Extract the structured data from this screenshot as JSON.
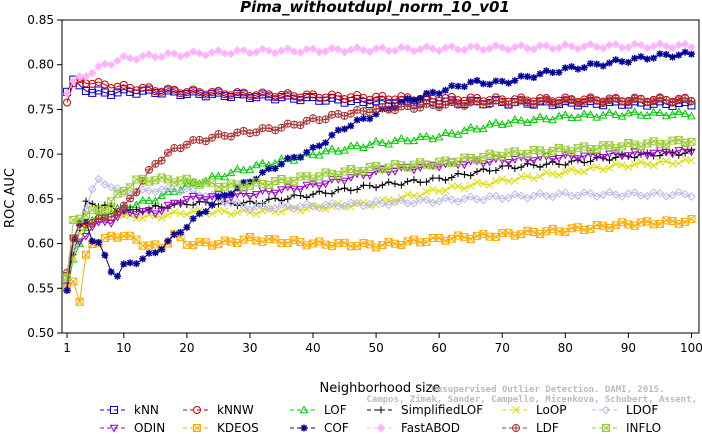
{
  "chart_data": {
    "type": "line",
    "title": "Pima_withoutdupl_norm_10_v01",
    "xlabel": "Neighborhood size",
    "ylabel": "ROC AUC",
    "xlim": [
      1,
      100
    ],
    "ylim": [
      0.5,
      0.85
    ],
    "xticks": [
      1,
      10,
      20,
      30,
      40,
      50,
      60,
      70,
      80,
      90,
      100
    ],
    "yticks": [
      "0.50",
      "0.55",
      "0.60",
      "0.65",
      "0.70",
      "0.75",
      "0.80",
      "0.85"
    ],
    "grid": false,
    "legend_position": "bottom",
    "watermark_lines": [
      "Unsupervised Outlier Detection. DAMI, 2015.",
      "Campos, Zimek, Sander, Campello, Micenkova, Schubert, Assent, Houle"
    ],
    "series": [
      {
        "name": "kNN",
        "color": "#0000cc",
        "marker": "square",
        "points": [
          [
            1,
            0.772
          ],
          [
            2,
            0.782
          ],
          [
            3,
            0.775
          ],
          [
            5,
            0.77
          ],
          [
            7,
            0.768
          ],
          [
            10,
            0.77
          ],
          [
            15,
            0.77
          ],
          [
            20,
            0.768
          ],
          [
            30,
            0.765
          ],
          [
            40,
            0.762
          ],
          [
            50,
            0.758
          ],
          [
            60,
            0.758
          ],
          [
            70,
            0.758
          ],
          [
            80,
            0.757
          ],
          [
            90,
            0.757
          ],
          [
            100,
            0.756
          ]
        ]
      },
      {
        "name": "kNNW",
        "color": "#cc0000",
        "marker": "circle",
        "points": [
          [
            1,
            0.76
          ],
          [
            2,
            0.778
          ],
          [
            3,
            0.782
          ],
          [
            5,
            0.78
          ],
          [
            7,
            0.777
          ],
          [
            10,
            0.775
          ],
          [
            15,
            0.772
          ],
          [
            20,
            0.77
          ],
          [
            30,
            0.767
          ],
          [
            40,
            0.765
          ],
          [
            50,
            0.763
          ],
          [
            60,
            0.762
          ],
          [
            70,
            0.761
          ],
          [
            80,
            0.761
          ],
          [
            90,
            0.761
          ],
          [
            100,
            0.761
          ]
        ]
      },
      {
        "name": "LOF",
        "color": "#00cc00",
        "marker": "triangle-up",
        "points": [
          [
            1,
            0.55
          ],
          [
            2,
            0.58
          ],
          [
            4,
            0.62
          ],
          [
            6,
            0.63
          ],
          [
            8,
            0.635
          ],
          [
            10,
            0.64
          ],
          [
            15,
            0.65
          ],
          [
            20,
            0.665
          ],
          [
            25,
            0.675
          ],
          [
            30,
            0.685
          ],
          [
            40,
            0.7
          ],
          [
            50,
            0.712
          ],
          [
            60,
            0.72
          ],
          [
            70,
            0.735
          ],
          [
            80,
            0.742
          ],
          [
            90,
            0.745
          ],
          [
            100,
            0.745
          ]
        ]
      },
      {
        "name": "SimplifiedLOF",
        "color": "#000000",
        "marker": "plus",
        "points": [
          [
            1,
            0.555
          ],
          [
            2,
            0.59
          ],
          [
            3,
            0.615
          ],
          [
            4,
            0.645
          ],
          [
            5,
            0.645
          ],
          [
            7,
            0.642
          ],
          [
            10,
            0.635
          ],
          [
            15,
            0.64
          ],
          [
            20,
            0.645
          ],
          [
            25,
            0.645
          ],
          [
            30,
            0.645
          ],
          [
            35,
            0.65
          ],
          [
            40,
            0.655
          ],
          [
            45,
            0.66
          ],
          [
            50,
            0.665
          ],
          [
            60,
            0.672
          ],
          [
            70,
            0.685
          ],
          [
            80,
            0.69
          ],
          [
            90,
            0.698
          ],
          [
            100,
            0.702
          ]
        ]
      },
      {
        "name": "LoOP",
        "color": "#dddd00",
        "marker": "x",
        "points": [
          [
            1,
            0.56
          ],
          [
            3,
            0.61
          ],
          [
            5,
            0.625
          ],
          [
            8,
            0.64
          ],
          [
            10,
            0.63
          ],
          [
            15,
            0.63
          ],
          [
            20,
            0.635
          ],
          [
            30,
            0.635
          ],
          [
            40,
            0.64
          ],
          [
            50,
            0.645
          ],
          [
            60,
            0.66
          ],
          [
            70,
            0.67
          ],
          [
            80,
            0.68
          ],
          [
            90,
            0.688
          ],
          [
            100,
            0.692
          ]
        ]
      },
      {
        "name": "LDOF",
        "color": "#b8b8e8",
        "marker": "diamond",
        "points": [
          [
            1,
            0.565
          ],
          [
            3,
            0.62
          ],
          [
            5,
            0.66
          ],
          [
            6,
            0.67
          ],
          [
            8,
            0.665
          ],
          [
            10,
            0.655
          ],
          [
            15,
            0.66
          ],
          [
            20,
            0.66
          ],
          [
            25,
            0.65
          ],
          [
            30,
            0.64
          ],
          [
            40,
            0.642
          ],
          [
            50,
            0.645
          ],
          [
            60,
            0.648
          ],
          [
            70,
            0.652
          ],
          [
            80,
            0.655
          ],
          [
            90,
            0.655
          ],
          [
            100,
            0.655
          ]
        ]
      },
      {
        "name": "ODIN",
        "color": "#9900cc",
        "marker": "triangle-down",
        "points": [
          [
            1,
            0.555
          ],
          [
            2,
            0.605
          ],
          [
            3,
            0.6
          ],
          [
            5,
            0.62
          ],
          [
            8,
            0.625
          ],
          [
            10,
            0.635
          ],
          [
            15,
            0.635
          ],
          [
            20,
            0.65
          ],
          [
            30,
            0.655
          ],
          [
            40,
            0.665
          ],
          [
            50,
            0.68
          ],
          [
            60,
            0.688
          ],
          [
            70,
            0.693
          ],
          [
            80,
            0.697
          ],
          [
            90,
            0.7
          ],
          [
            100,
            0.704
          ]
        ]
      },
      {
        "name": "KDEOS",
        "color": "#ffaa00",
        "marker": "square-x",
        "points": [
          [
            1,
            0.55
          ],
          [
            2,
            0.56
          ],
          [
            3,
            0.535
          ],
          [
            4,
            0.585
          ],
          [
            5,
            0.6
          ],
          [
            7,
            0.605
          ],
          [
            10,
            0.61
          ],
          [
            13,
            0.6
          ],
          [
            16,
            0.595
          ],
          [
            18,
            0.61
          ],
          [
            20,
            0.6
          ],
          [
            25,
            0.6
          ],
          [
            30,
            0.605
          ],
          [
            40,
            0.6
          ],
          [
            50,
            0.598
          ],
          [
            60,
            0.605
          ],
          [
            70,
            0.61
          ],
          [
            80,
            0.615
          ],
          [
            90,
            0.622
          ],
          [
            100,
            0.625
          ]
        ]
      },
      {
        "name": "COF",
        "color": "#000099",
        "marker": "star",
        "points": [
          [
            1,
            0.55
          ],
          [
            2,
            0.605
          ],
          [
            3,
            0.62
          ],
          [
            4,
            0.625
          ],
          [
            5,
            0.605
          ],
          [
            6,
            0.6
          ],
          [
            8,
            0.57
          ],
          [
            9,
            0.565
          ],
          [
            10,
            0.575
          ],
          [
            12,
            0.58
          ],
          [
            15,
            0.59
          ],
          [
            20,
            0.62
          ],
          [
            25,
            0.65
          ],
          [
            30,
            0.67
          ],
          [
            35,
            0.69
          ],
          [
            40,
            0.705
          ],
          [
            45,
            0.73
          ],
          [
            50,
            0.745
          ],
          [
            55,
            0.76
          ],
          [
            60,
            0.77
          ],
          [
            65,
            0.78
          ],
          [
            70,
            0.78
          ],
          [
            75,
            0.788
          ],
          [
            80,
            0.795
          ],
          [
            85,
            0.8
          ],
          [
            90,
            0.805
          ],
          [
            95,
            0.81
          ],
          [
            100,
            0.812
          ]
        ]
      },
      {
        "name": "FastABOD",
        "color": "#ffb3ff",
        "marker": "diamond-filled",
        "points": [
          [
            1,
            0.77
          ],
          [
            2,
            0.78
          ],
          [
            3,
            0.785
          ],
          [
            5,
            0.792
          ],
          [
            7,
            0.8
          ],
          [
            10,
            0.807
          ],
          [
            15,
            0.81
          ],
          [
            20,
            0.812
          ],
          [
            30,
            0.815
          ],
          [
            40,
            0.816
          ],
          [
            50,
            0.817
          ],
          [
            60,
            0.818
          ],
          [
            70,
            0.819
          ],
          [
            80,
            0.82
          ],
          [
            90,
            0.821
          ],
          [
            100,
            0.821
          ]
        ]
      },
      {
        "name": "LDF",
        "color": "#aa3333",
        "marker": "circle-plus",
        "points": [
          [
            1,
            0.57
          ],
          [
            2,
            0.605
          ],
          [
            3,
            0.62
          ],
          [
            5,
            0.625
          ],
          [
            7,
            0.628
          ],
          [
            10,
            0.64
          ],
          [
            13,
            0.67
          ],
          [
            15,
            0.69
          ],
          [
            18,
            0.705
          ],
          [
            20,
            0.712
          ],
          [
            25,
            0.72
          ],
          [
            30,
            0.725
          ],
          [
            35,
            0.73
          ],
          [
            40,
            0.738
          ],
          [
            45,
            0.745
          ],
          [
            50,
            0.75
          ],
          [
            55,
            0.752
          ],
          [
            60,
            0.755
          ],
          [
            70,
            0.758
          ],
          [
            80,
            0.759
          ],
          [
            90,
            0.76
          ],
          [
            100,
            0.76
          ]
        ]
      },
      {
        "name": "INFLO",
        "color": "#99cc33",
        "marker": "hourglass",
        "points": [
          [
            1,
            0.56
          ],
          [
            2,
            0.625
          ],
          [
            3,
            0.63
          ],
          [
            5,
            0.635
          ],
          [
            7,
            0.64
          ],
          [
            10,
            0.66
          ],
          [
            12,
            0.67
          ],
          [
            15,
            0.672
          ],
          [
            20,
            0.67
          ],
          [
            25,
            0.665
          ],
          [
            30,
            0.665
          ],
          [
            40,
            0.675
          ],
          [
            50,
            0.685
          ],
          [
            60,
            0.69
          ],
          [
            70,
            0.7
          ],
          [
            80,
            0.705
          ],
          [
            90,
            0.71
          ],
          [
            100,
            0.715
          ]
        ]
      }
    ]
  }
}
